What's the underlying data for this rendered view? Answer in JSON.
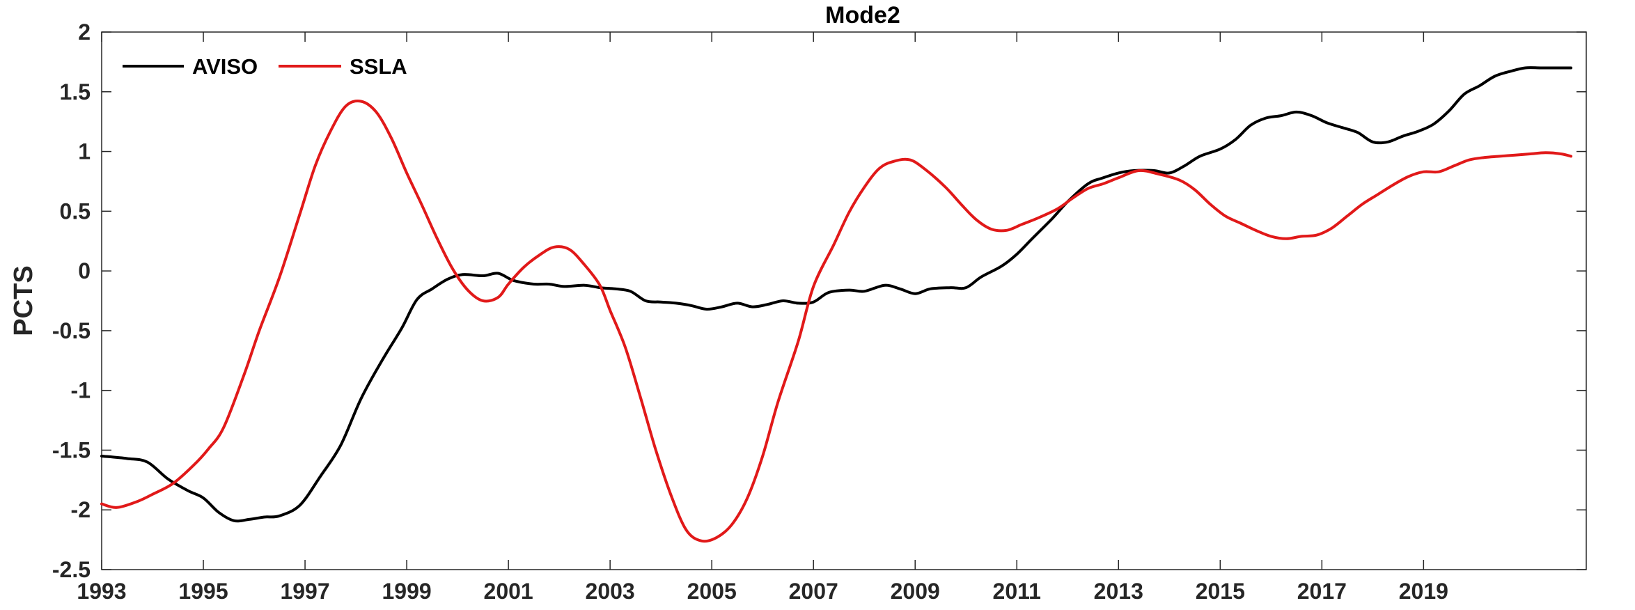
{
  "chart_data": {
    "type": "line",
    "title": "Mode2",
    "xlabel": "",
    "ylabel": "PCTS",
    "xlim": [
      1993,
      2022.2
    ],
    "ylim": [
      -2.5,
      2
    ],
    "x_ticks": [
      "1993",
      "1995",
      "1997",
      "1999",
      "2001",
      "2003",
      "2005",
      "2007",
      "2009",
      "2011",
      "2013",
      "2015",
      "2017",
      "2019"
    ],
    "y_ticks": [
      "2",
      "1.5",
      "1",
      "0.5",
      "0",
      "-0.5",
      "-1",
      "-1.5",
      "-2",
      "-2.5"
    ],
    "grid": false,
    "legend_position": "top-left",
    "series": [
      {
        "name": "AVISO",
        "color": "#000000",
        "x": [
          1993.0,
          1993.5,
          1993.9,
          1994.3,
          1994.7,
          1995.0,
          1995.3,
          1995.6,
          1995.9,
          1996.2,
          1996.5,
          1996.9,
          1997.3,
          1997.7,
          1998.1,
          1998.5,
          1998.9,
          1999.2,
          1999.5,
          1999.8,
          2000.1,
          2000.5,
          2000.8,
          2001.1,
          2001.5,
          2001.8,
          2002.1,
          2002.5,
          2002.8,
          2003.1,
          2003.4,
          2003.7,
          2004.0,
          2004.3,
          2004.6,
          2004.9,
          2005.2,
          2005.5,
          2005.8,
          2006.1,
          2006.4,
          2006.7,
          2007.0,
          2007.3,
          2007.7,
          2008.0,
          2008.4,
          2008.7,
          2009.0,
          2009.3,
          2009.7,
          2010.0,
          2010.3,
          2010.7,
          2011.0,
          2011.3,
          2011.7,
          2012.0,
          2012.4,
          2012.7,
          2013.0,
          2013.3,
          2013.7,
          2014.0,
          2014.3,
          2014.6,
          2015.0,
          2015.3,
          2015.6,
          2015.9,
          2016.2,
          2016.5,
          2016.8,
          2017.1,
          2017.4,
          2017.7,
          2018.0,
          2018.3,
          2018.6,
          2018.9,
          2019.2,
          2019.5,
          2019.8,
          2020.1,
          2020.4,
          2020.7,
          2021.0,
          2021.3,
          2021.6,
          2021.9
        ],
        "y": [
          -1.55,
          -1.57,
          -1.6,
          -1.74,
          -1.84,
          -1.9,
          -2.02,
          -2.09,
          -2.08,
          -2.06,
          -2.05,
          -1.96,
          -1.72,
          -1.46,
          -1.07,
          -0.76,
          -0.48,
          -0.24,
          -0.15,
          -0.07,
          -0.03,
          -0.04,
          -0.02,
          -0.08,
          -0.11,
          -0.11,
          -0.13,
          -0.12,
          -0.14,
          -0.15,
          -0.17,
          -0.25,
          -0.26,
          -0.27,
          -0.29,
          -0.32,
          -0.3,
          -0.27,
          -0.3,
          -0.28,
          -0.25,
          -0.27,
          -0.26,
          -0.18,
          -0.16,
          -0.17,
          -0.12,
          -0.15,
          -0.19,
          -0.15,
          -0.14,
          -0.14,
          -0.05,
          0.04,
          0.14,
          0.27,
          0.44,
          0.58,
          0.73,
          0.78,
          0.82,
          0.84,
          0.84,
          0.82,
          0.88,
          0.96,
          1.02,
          1.1,
          1.22,
          1.28,
          1.3,
          1.33,
          1.3,
          1.24,
          1.2,
          1.16,
          1.08,
          1.08,
          1.13,
          1.17,
          1.23,
          1.34,
          1.48,
          1.55,
          1.63,
          1.67,
          1.7,
          1.7,
          1.7,
          1.7
        ]
      },
      {
        "name": "SSLA",
        "color": "#e11919",
        "x": [
          1993.0,
          1993.3,
          1993.7,
          1994.0,
          1994.4,
          1994.8,
          1995.1,
          1995.4,
          1995.8,
          1996.1,
          1996.5,
          1996.9,
          1997.2,
          1997.5,
          1997.8,
          1998.1,
          1998.4,
          1998.7,
          1999.0,
          1999.3,
          1999.6,
          1999.9,
          2000.2,
          2000.5,
          2000.8,
          2001.0,
          2001.3,
          2001.6,
          2001.9,
          2002.2,
          2002.5,
          2002.8,
          2003.0,
          2003.3,
          2003.6,
          2003.9,
          2004.2,
          2004.5,
          2004.8,
          2005.1,
          2005.4,
          2005.7,
          2006.0,
          2006.3,
          2006.7,
          2007.0,
          2007.4,
          2007.7,
          2008.0,
          2008.3,
          2008.6,
          2008.9,
          2009.2,
          2009.6,
          2009.9,
          2010.2,
          2010.5,
          2010.8,
          2011.1,
          2011.4,
          2011.8,
          2012.1,
          2012.4,
          2012.7,
          2013.0,
          2013.4,
          2013.8,
          2014.2,
          2014.5,
          2014.8,
          2015.1,
          2015.4,
          2015.7,
          2016.0,
          2016.3,
          2016.6,
          2016.9,
          2017.2,
          2017.5,
          2017.8,
          2018.1,
          2018.4,
          2018.7,
          2019.0,
          2019.3,
          2019.6,
          2019.9,
          2020.2,
          2020.5,
          2020.8,
          2021.1,
          2021.4,
          2021.7,
          2021.9
        ],
        "y": [
          -1.95,
          -1.98,
          -1.93,
          -1.87,
          -1.78,
          -1.63,
          -1.49,
          -1.31,
          -0.87,
          -0.5,
          -0.05,
          0.48,
          0.88,
          1.17,
          1.38,
          1.42,
          1.33,
          1.11,
          0.82,
          0.55,
          0.27,
          0.02,
          -0.16,
          -0.25,
          -0.22,
          -0.11,
          0.03,
          0.13,
          0.2,
          0.18,
          0.05,
          -0.12,
          -0.33,
          -0.64,
          -1.06,
          -1.5,
          -1.88,
          -2.17,
          -2.26,
          -2.23,
          -2.12,
          -1.9,
          -1.55,
          -1.1,
          -0.59,
          -0.13,
          0.22,
          0.49,
          0.7,
          0.86,
          0.92,
          0.93,
          0.85,
          0.7,
          0.56,
          0.43,
          0.35,
          0.34,
          0.39,
          0.44,
          0.52,
          0.61,
          0.69,
          0.73,
          0.78,
          0.84,
          0.81,
          0.76,
          0.68,
          0.56,
          0.46,
          0.4,
          0.34,
          0.29,
          0.27,
          0.29,
          0.3,
          0.36,
          0.46,
          0.56,
          0.64,
          0.72,
          0.79,
          0.83,
          0.83,
          0.88,
          0.93,
          0.95,
          0.96,
          0.97,
          0.98,
          0.99,
          0.98,
          0.96
        ]
      }
    ]
  }
}
